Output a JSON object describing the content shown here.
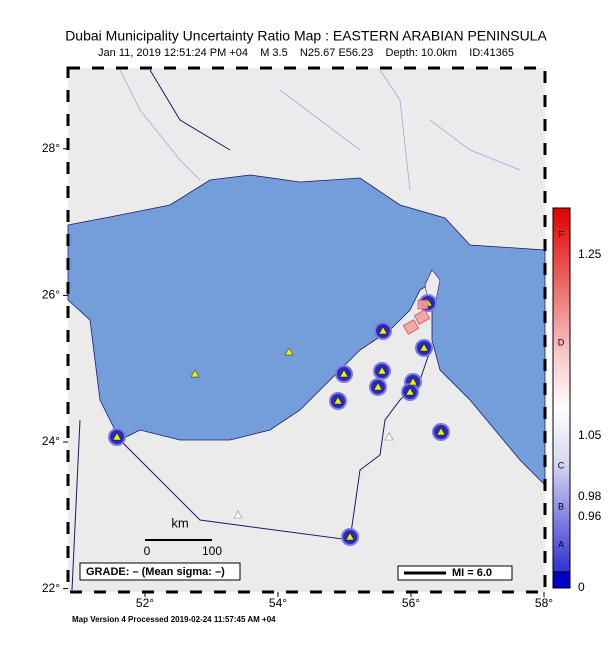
{
  "header": {
    "title": "Dubai Municipality Uncertainty Ratio Map : EASTERN ARABIAN PENINSULA",
    "subtitle": "Jan 11, 2019 12:51:24 PM +04    M 3.5    N25.67 E56.23    Depth: 10.0km    ID:41365"
  },
  "map": {
    "lon_ticks": [
      {
        "value": 52,
        "label": "52°"
      },
      {
        "value": 54,
        "label": "54°"
      },
      {
        "value": 56,
        "label": "56°"
      },
      {
        "value": 58,
        "label": "58°"
      }
    ],
    "lat_ticks": [
      {
        "value": 22,
        "label": "22°"
      },
      {
        "value": 24,
        "label": "24°"
      },
      {
        "value": 26,
        "label": "26°"
      },
      {
        "value": 28,
        "label": "28°"
      }
    ],
    "scale_unit": "km",
    "scale_start": 0,
    "scale_end": 100,
    "grade": "GRADE: – (Mean sigma: –)",
    "mi_legend": "MI = 6.0"
  },
  "colorbar": {
    "grades": [
      "F",
      "D",
      "C",
      "B",
      "A"
    ],
    "labels": [
      1.25,
      1.05,
      0.98,
      0.96,
      0
    ]
  },
  "footer": "Map Version 4 Processed 2019-02-24 11:57:45 AM +04"
}
